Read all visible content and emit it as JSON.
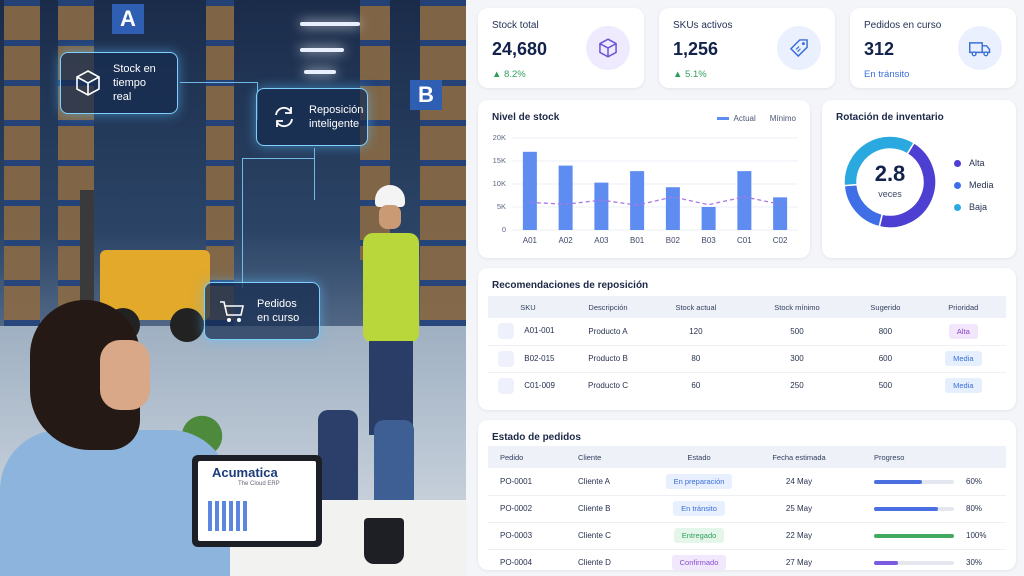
{
  "photo": {
    "sign_a": "A",
    "sign_b": "B",
    "laptop_brand": "Acumatica",
    "laptop_tagline": "The Cloud ERP",
    "callouts": [
      {
        "label": "Stock en tiempo real",
        "icon": "box-icon"
      },
      {
        "label": "Reposición inteligente",
        "icon": "refresh-icon"
      },
      {
        "label": "Pedidos en curso",
        "icon": "cart-icon"
      }
    ]
  },
  "kpis": [
    {
      "label": "Stock total",
      "value": "24,680",
      "delta": "▲ 8.2%",
      "icon": "box-icon"
    },
    {
      "label": "SKUs activos",
      "value": "1,256",
      "delta": "▲ 5.1%",
      "icon": "tag-icon"
    },
    {
      "label": "Pedidos en curso",
      "value": "312",
      "delta": "En tránsito",
      "icon": "truck-icon"
    }
  ],
  "stock_chart": {
    "title": "Nivel de stock",
    "legend_actual": "Actual",
    "legend_min": "Mínimo",
    "y_ticks": [
      "20K",
      "15K",
      "10K",
      "5K",
      "0"
    ]
  },
  "rotation": {
    "title": "Rotación de inventario",
    "value": "2.8",
    "unit": "veces",
    "legend": [
      {
        "label": "Alta",
        "color": "#4c3fd1"
      },
      {
        "label": "Media",
        "color": "#3f6fe6"
      },
      {
        "label": "Baja",
        "color": "#2aa8e0"
      }
    ]
  },
  "reco": {
    "title": "Recomendaciones de reposición",
    "headers": [
      "SKU",
      "Descripción",
      "Stock actual",
      "Stock mínimo",
      "Sugerido",
      "Prioridad"
    ],
    "rows": [
      {
        "sku": "A01-001",
        "desc": "Producto A",
        "actual": "120",
        "min": "500",
        "sug": "800",
        "prio": "Alta"
      },
      {
        "sku": "B02-015",
        "desc": "Producto B",
        "actual": "80",
        "min": "300",
        "sug": "600",
        "prio": "Media"
      },
      {
        "sku": "C01-009",
        "desc": "Producto C",
        "actual": "60",
        "min": "250",
        "sug": "500",
        "prio": "Media"
      }
    ]
  },
  "orders": {
    "title": "Estado de pedidos",
    "headers": [
      "Pedido",
      "Cliente",
      "Estado",
      "Fecha estimada",
      "Progreso"
    ],
    "rows": [
      {
        "id": "PO-0001",
        "client": "Cliente A",
        "status": "En preparación",
        "date": "24 May",
        "progress_text": "60%",
        "progress": 0.6
      },
      {
        "id": "PO-0002",
        "client": "Cliente B",
        "status": "En tránsito",
        "date": "25 May",
        "progress_text": "80%",
        "progress": 0.8
      },
      {
        "id": "PO-0003",
        "client": "Cliente C",
        "status": "Entregado",
        "date": "22 May",
        "progress_text": "100%",
        "progress": 1.0
      },
      {
        "id": "PO-0004",
        "client": "Cliente D",
        "status": "Confirmado",
        "date": "27 May",
        "progress_text": "30%",
        "progress": 0.3
      }
    ]
  },
  "colors": {
    "accent": "#5f8cf0",
    "min_line": "#a777e6",
    "positive": "#2f9e5b"
  },
  "chart_data": [
    {
      "type": "bar",
      "title": "Nivel de stock",
      "categories": [
        "A01",
        "A02",
        "A03",
        "B01",
        "B02",
        "B03",
        "C01",
        "C02"
      ],
      "series": [
        {
          "name": "Actual",
          "values": [
            17000,
            14000,
            10300,
            12800,
            9300,
            5000,
            12800,
            7100
          ]
        },
        {
          "name": "Mínimo",
          "values": [
            6000,
            5600,
            6500,
            5400,
            7200,
            5500,
            7200,
            5600
          ]
        }
      ],
      "ylim": [
        0,
        20000
      ],
      "ylabel": "",
      "xlabel": "",
      "legend": "top-right",
      "grid": true
    },
    {
      "type": "pie",
      "title": "Rotación de inventario",
      "categories": [
        "Alta",
        "Media",
        "Baja"
      ],
      "values": [
        45,
        20,
        35
      ]
    }
  ]
}
